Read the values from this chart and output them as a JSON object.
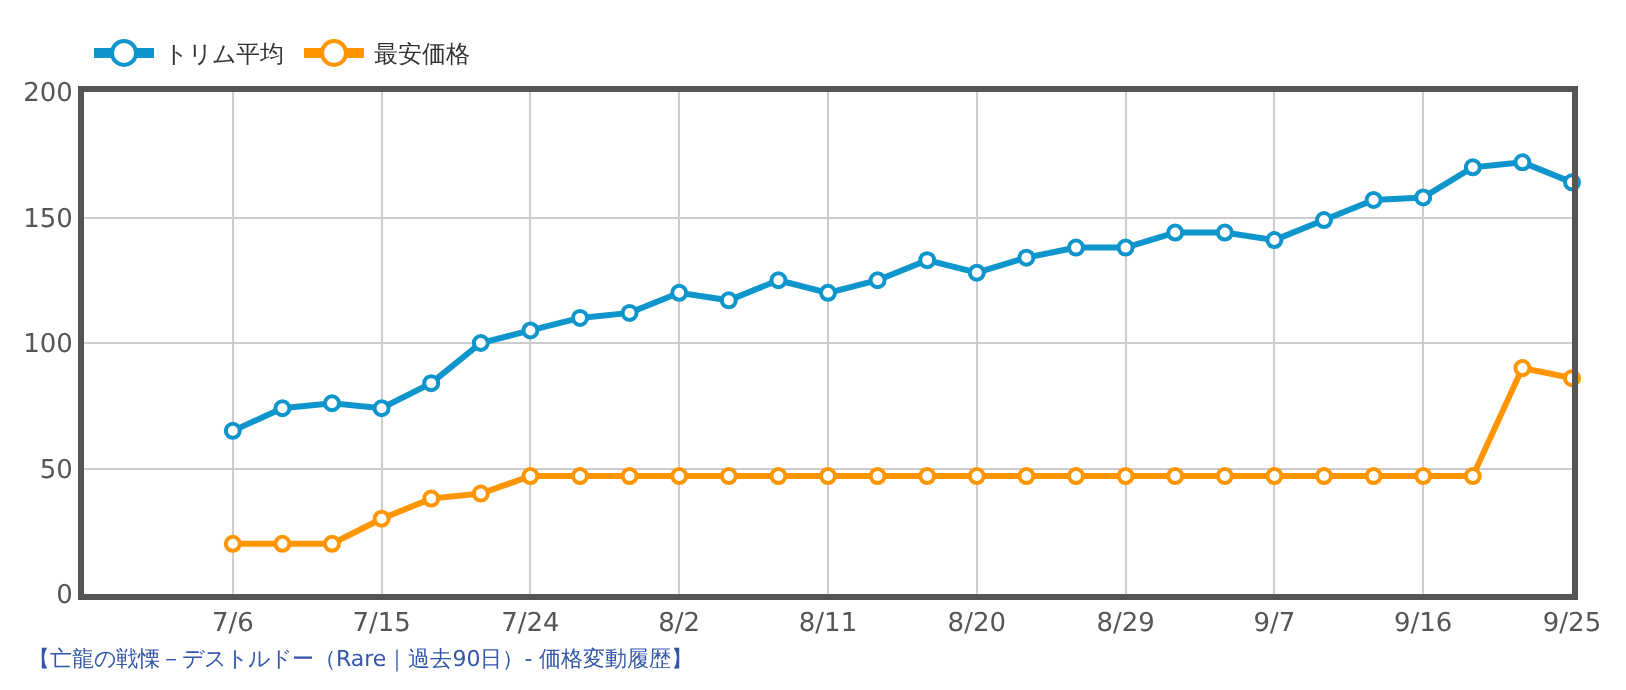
{
  "chart_data": {
    "type": "line",
    "x": [
      "--07-06",
      "--07-09",
      "--07-12",
      "--07-15",
      "--07-18",
      "--07-21",
      "--07-24",
      "--07-27",
      "--07-30",
      "--08-02",
      "--08-05",
      "--08-08",
      "--08-11",
      "--08-14",
      "--08-17",
      "--08-20",
      "--08-23",
      "--08-26",
      "--08-29",
      "--09-01",
      "--09-04",
      "--09-07",
      "--09-10",
      "--09-13",
      "--09-16",
      "--09-19",
      "--09-22",
      "--09-25"
    ],
    "series": [
      {
        "name": "トリム平均",
        "color": "#0e95cc",
        "values": [
          65,
          74,
          76,
          74,
          84,
          100,
          105,
          110,
          112,
          120,
          117,
          125,
          120,
          125,
          133,
          128,
          134,
          138,
          138,
          144,
          144,
          141,
          149,
          157,
          158,
          170,
          172,
          164
        ]
      },
      {
        "name": "最安価格",
        "color": "#ff9500",
        "values": [
          20,
          20,
          20,
          30,
          38,
          40,
          47,
          47,
          47,
          47,
          47,
          47,
          47,
          47,
          47,
          47,
          47,
          47,
          47,
          47,
          47,
          47,
          47,
          47,
          47,
          47,
          90,
          86
        ]
      }
    ],
    "xlim": [
      "--06-27",
      "--09-25"
    ],
    "xticks": [
      {
        "value": "--07-06",
        "label": "7/6"
      },
      {
        "value": "--07-15",
        "label": "7/15"
      },
      {
        "value": "--07-24",
        "label": "7/24"
      },
      {
        "value": "--08-02",
        "label": "8/2"
      },
      {
        "value": "--08-11",
        "label": "8/11"
      },
      {
        "value": "--08-20",
        "label": "8/20"
      },
      {
        "value": "--08-29",
        "label": "8/29"
      },
      {
        "value": "--09-07",
        "label": "9/7"
      },
      {
        "value": "--09-16",
        "label": "9/16"
      },
      {
        "value": "--09-25",
        "label": "9/25"
      }
    ],
    "ylim": [
      0,
      200
    ],
    "yticks": [
      0,
      50,
      100,
      150,
      200
    ],
    "grid": true,
    "legend": "top left",
    "marker": "circle",
    "line_style": "solid",
    "annotations": [
      "【亡龍の戦慄－デストルドー（Rare｜過去90日）- 価格変動履歴】"
    ]
  }
}
